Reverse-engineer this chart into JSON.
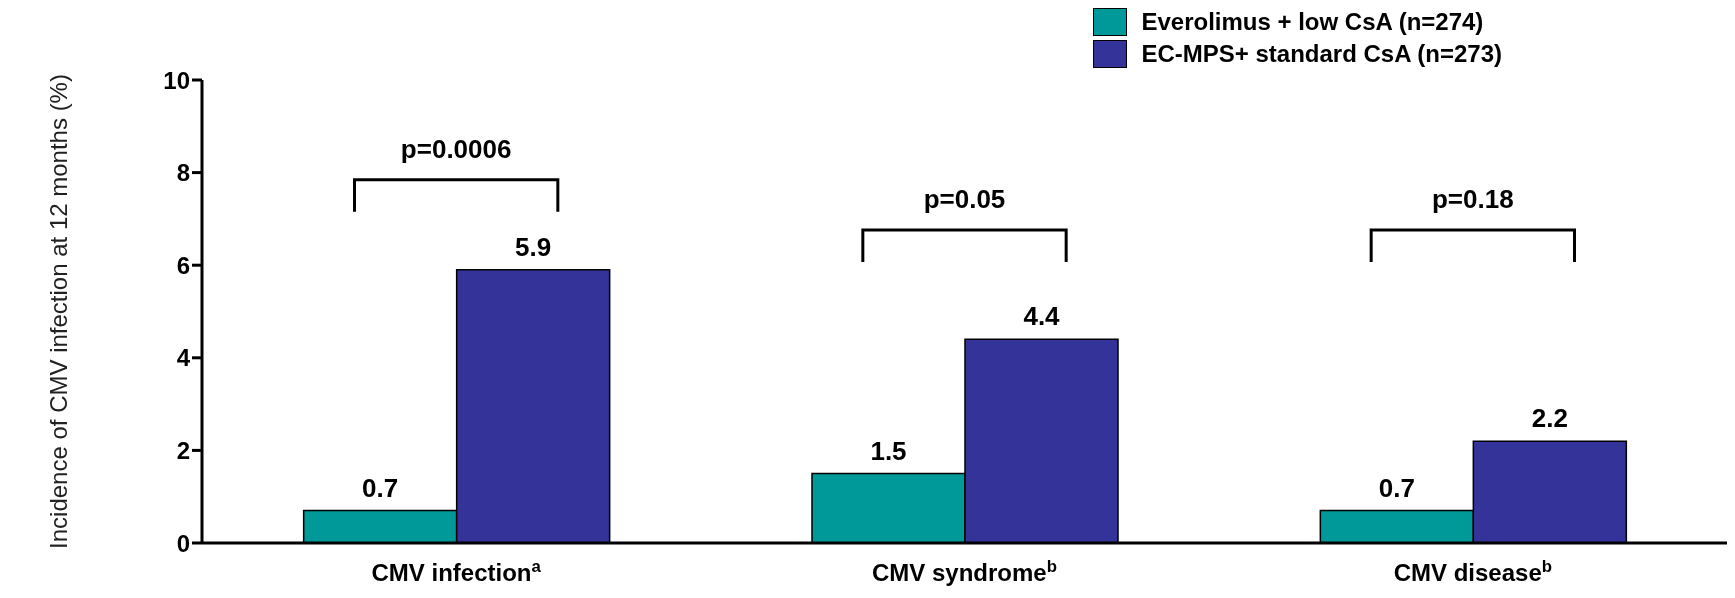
{
  "chart_data": {
    "type": "bar",
    "ylabel": "Incidence of CMV infection at 12 months (%)",
    "categories": [
      "CMV infection$^{a}$",
      "CMV syndrome$^{b}$",
      "CMV disease$^{b}$"
    ],
    "series": [
      {
        "name": "Everolimus + low CsA (n=274)",
        "color": "#009999",
        "values": [
          0.7,
          1.5,
          0.7
        ]
      },
      {
        "name": "EC-MPS+ standard CsA (n=273)",
        "color": "#333399",
        "values": [
          5.9,
          4.4,
          2.2
        ]
      }
    ],
    "ylim": [
      0,
      10
    ],
    "yticks": [
      0,
      2,
      4,
      6,
      8,
      10
    ],
    "grid": false,
    "legend": "top right",
    "data_labels": true,
    "annotations": [
      "p=0.0006",
      "p=0.05",
      "p=0.18"
    ]
  }
}
